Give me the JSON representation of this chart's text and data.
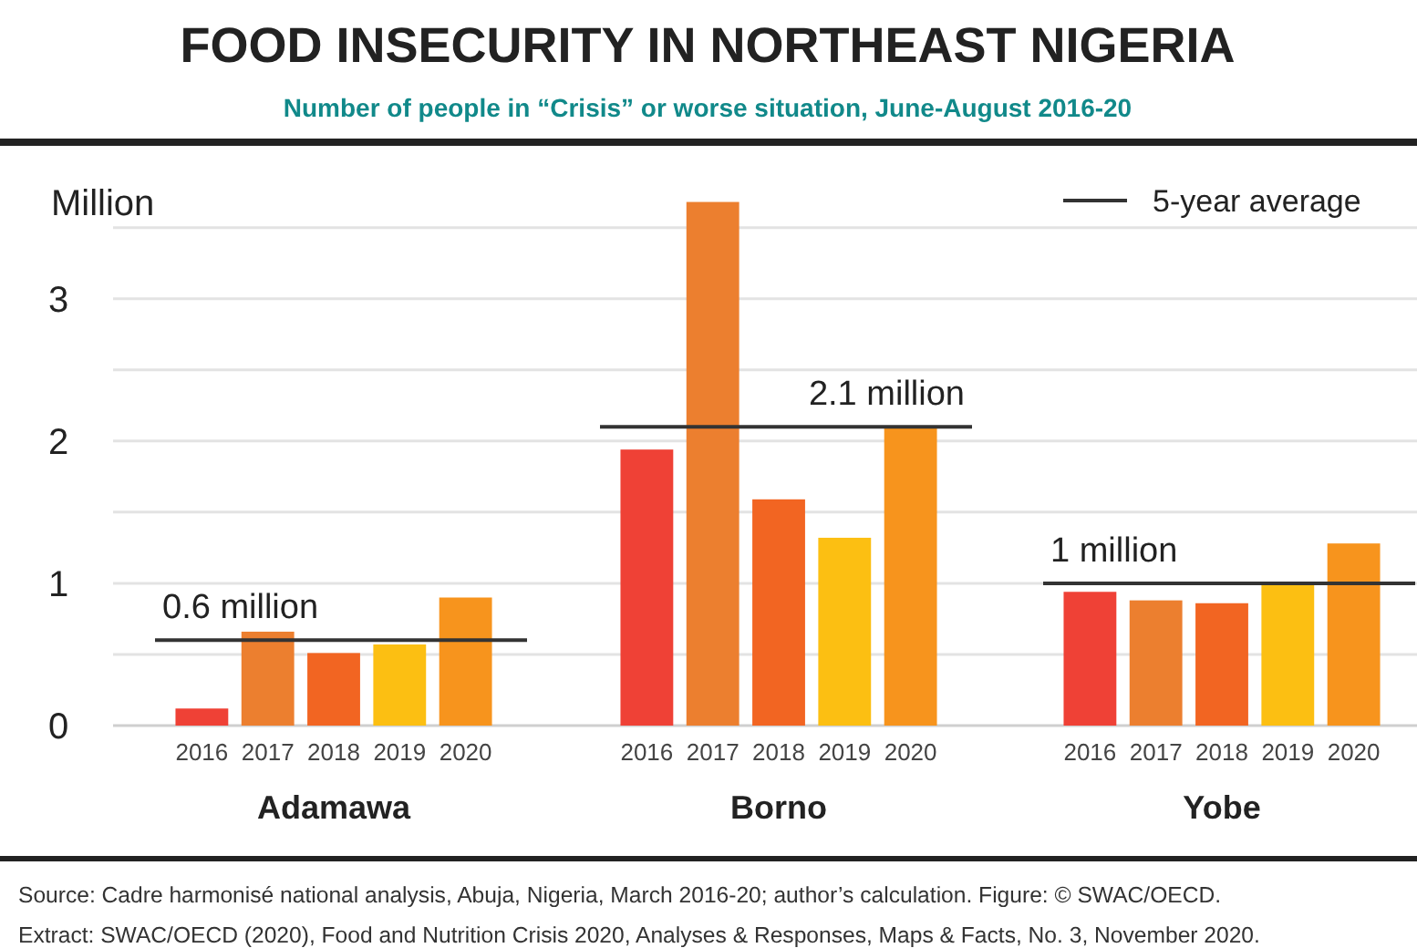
{
  "chart_data": [
    {
      "type": "bar",
      "title": "FOOD INSECURITY IN NORTHEAST NIGERIA",
      "subtitle": "Number of people in “Crisis” or worse situation, June-August 2016-20",
      "ylabel": "Million",
      "xlabel": "Adamawa",
      "categories": [
        "2016",
        "2017",
        "2018",
        "2019",
        "2020"
      ],
      "values": [
        0.12,
        0.66,
        0.51,
        0.57,
        0.9
      ],
      "colors": [
        "#ef4136",
        "#ec7f2f",
        "#f26522",
        "#fcbf12",
        "#f7941d"
      ],
      "ylim": [
        0,
        4.1
      ],
      "yticks": [
        0,
        {
          "value": 0.5,
          "label": null
        },
        1,
        {
          "value": 1.5,
          "label": null
        },
        2,
        {
          "value": 2.5,
          "label": null
        },
        3,
        {
          "value": 3.5,
          "label": null
        }
      ],
      "grid": "y",
      "ref_lines": [
        {
          "axis": "y",
          "value": 0.6,
          "label": "0.6 million",
          "color": "#333333"
        }
      ],
      "annotations": [
        "Source: Cadre harmonisé national analysis, Abuja, Nigeria, March 2016-20; author’s calculation. Figure: © SWAC/OECD.",
        "Extract: SWAC/OECD (2020), Food and Nutrition Crisis 2020, Analyses & Responses, Maps & Facts, No. 3, November 2020."
      ]
    },
    {
      "type": "bar",
      "xlabel": "Borno",
      "categories": [
        "2016",
        "2017",
        "2018",
        "2019",
        "2020"
      ],
      "values": [
        1.94,
        3.68,
        1.59,
        1.32,
        2.09
      ],
      "colors": [
        "#ef4136",
        "#ec7f2f",
        "#f26522",
        "#fcbf12",
        "#f7941d"
      ],
      "ylim": [
        0,
        4.1
      ],
      "yticks": [
        0,
        {
          "value": 0.5,
          "label": null
        },
        1,
        {
          "value": 1.5,
          "label": null
        },
        2,
        {
          "value": 2.5,
          "label": null
        },
        3,
        {
          "value": 3.5,
          "label": null
        }
      ],
      "grid": "y",
      "tick_labels": "x",
      "ref_lines": [
        {
          "axis": "y",
          "value": 2.1,
          "label": "2.1 million",
          "color": "#333333"
        }
      ]
    },
    {
      "type": "bar",
      "xlabel": "Yobe",
      "categories": [
        "2016",
        "2017",
        "2018",
        "2019",
        "2020"
      ],
      "values": [
        0.94,
        0.88,
        0.86,
        1.0,
        1.28
      ],
      "colors": [
        "#ef4136",
        "#ec7f2f",
        "#f26522",
        "#fcbf12",
        "#f7941d"
      ],
      "ylim": [
        0,
        4.1
      ],
      "yticks": [
        0,
        {
          "value": 0.5,
          "label": null
        },
        1,
        {
          "value": 1.5,
          "label": null
        },
        2,
        {
          "value": 2.5,
          "label": null
        },
        3,
        {
          "value": 3.5,
          "label": null
        }
      ],
      "grid": "y",
      "tick_labels": "x",
      "ref_lines": [
        {
          "axis": "y",
          "value": 1.0,
          "label": "1 million",
          "color": "#333333"
        }
      ],
      "annotations": [
        "5-year average"
      ]
    }
  ]
}
